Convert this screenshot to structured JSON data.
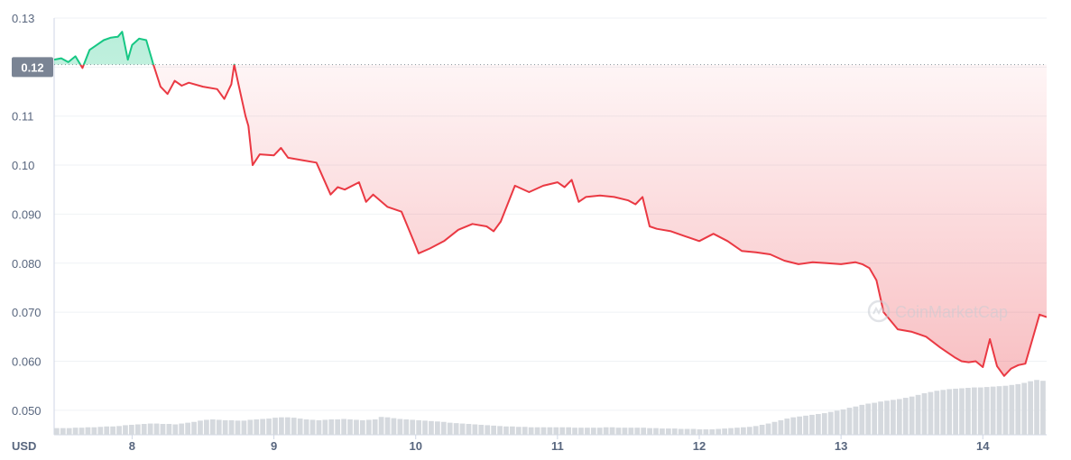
{
  "chart_data": {
    "type": "line",
    "xlabel": "",
    "ylabel": "",
    "currency_label": "USD",
    "current_price_label": "0.12",
    "watermark": "CoinMarketCap",
    "ylim": [
      0.045,
      0.13
    ],
    "xlim": [
      7.45,
      14.45
    ],
    "y_ticks": [
      {
        "value": 0.13,
        "label": "0.13"
      },
      {
        "value": 0.12,
        "label": "0.12"
      },
      {
        "value": 0.11,
        "label": "0.11"
      },
      {
        "value": 0.1,
        "label": "0.10"
      },
      {
        "value": 0.09,
        "label": "0.090"
      },
      {
        "value": 0.08,
        "label": "0.080"
      },
      {
        "value": 0.07,
        "label": "0.070"
      },
      {
        "value": 0.06,
        "label": "0.060"
      },
      {
        "value": 0.05,
        "label": "0.050"
      }
    ],
    "x_ticks": [
      {
        "value": 8,
        "label": "8"
      },
      {
        "value": 9,
        "label": "9"
      },
      {
        "value": 10,
        "label": "10"
      },
      {
        "value": 11,
        "label": "11"
      },
      {
        "value": 12,
        "label": "12"
      },
      {
        "value": 13,
        "label": "13"
      },
      {
        "value": 14,
        "label": "14"
      }
    ],
    "reference_price": 0.1205,
    "colors": {
      "above": "#16c784",
      "below": "#ea3943",
      "volume": "#d5d9de",
      "grid": "#eff2f5",
      "label_bg": "#7a8494"
    },
    "series": [
      {
        "x": [
          7.45,
          7.5,
          7.55,
          7.6,
          7.65,
          7.7,
          7.75,
          7.8,
          7.85,
          7.9,
          7.93,
          7.97,
          8.0,
          8.05,
          8.1,
          8.15,
          8.2,
          8.25,
          8.3,
          8.35,
          8.4,
          8.5,
          8.6,
          8.65,
          8.7,
          8.72,
          8.75,
          8.8,
          8.82,
          8.85,
          8.9,
          9.0,
          9.05,
          9.1,
          9.2,
          9.3,
          9.4,
          9.45,
          9.5,
          9.6,
          9.65,
          9.7,
          9.8,
          9.9,
          10.0,
          10.02,
          10.1,
          10.2,
          10.3,
          10.4,
          10.5,
          10.55,
          10.6,
          10.7,
          10.8,
          10.9,
          11.0,
          11.05,
          11.1,
          11.15,
          11.2,
          11.3,
          11.4,
          11.5,
          11.55,
          11.6,
          11.65,
          11.7,
          11.8,
          11.9,
          12.0,
          12.1,
          12.2,
          12.3,
          12.4,
          12.5,
          12.6,
          12.7,
          12.8,
          12.9,
          13.0,
          13.1,
          13.15,
          13.2,
          13.25,
          13.3,
          13.4,
          13.5,
          13.6,
          13.7,
          13.8,
          13.85,
          13.9,
          13.95,
          14.0,
          14.05,
          14.1,
          14.15,
          14.2,
          14.25,
          14.3,
          14.35,
          14.4,
          14.45
        ],
        "y": [
          0.1215,
          0.1218,
          0.121,
          0.1222,
          0.1198,
          0.1235,
          0.1245,
          0.1255,
          0.126,
          0.1262,
          0.1272,
          0.1215,
          0.1245,
          0.1258,
          0.1255,
          0.1205,
          0.116,
          0.1145,
          0.1172,
          0.1162,
          0.1168,
          0.116,
          0.1155,
          0.1135,
          0.1165,
          0.1205,
          0.1165,
          0.11,
          0.108,
          0.1,
          0.1022,
          0.102,
          0.1035,
          0.1015,
          0.101,
          0.1005,
          0.094,
          0.0955,
          0.095,
          0.0965,
          0.0925,
          0.094,
          0.0915,
          0.0905,
          0.0835,
          0.082,
          0.083,
          0.0845,
          0.0868,
          0.088,
          0.0875,
          0.0865,
          0.0885,
          0.0958,
          0.0945,
          0.0958,
          0.0965,
          0.0955,
          0.097,
          0.0925,
          0.0935,
          0.0938,
          0.0935,
          0.0928,
          0.092,
          0.0935,
          0.0875,
          0.087,
          0.0865,
          0.0855,
          0.0845,
          0.086,
          0.0845,
          0.0825,
          0.0822,
          0.0818,
          0.0805,
          0.0798,
          0.0802,
          0.08,
          0.0798,
          0.0802,
          0.0798,
          0.079,
          0.0765,
          0.07,
          0.0665,
          0.066,
          0.065,
          0.0628,
          0.0608,
          0.06,
          0.0598,
          0.06,
          0.0588,
          0.0645,
          0.059,
          0.057,
          0.0585,
          0.0592,
          0.0595,
          0.0645,
          0.0695,
          0.069
        ]
      }
    ],
    "volume": [
      8.0,
      8.0,
      8.0,
      8.5,
      8.5,
      9.0,
      9.0,
      9.5,
      10.0,
      10.0,
      10.5,
      11.5,
      12.0,
      12.5,
      13.0,
      13.5,
      13.5,
      13.0,
      13.0,
      12.5,
      13.5,
      14.5,
      15.5,
      17.0,
      18.0,
      18.5,
      18.0,
      17.5,
      17.5,
      17.0,
      17.0,
      18.0,
      18.5,
      19.0,
      19.5,
      20.5,
      21.0,
      21.0,
      20.5,
      19.5,
      18.5,
      18.0,
      17.5,
      18.0,
      18.5,
      18.5,
      19.0,
      18.5,
      18.0,
      17.5,
      18.0,
      18.5,
      21.5,
      21.0,
      20.0,
      19.0,
      18.5,
      18.0,
      17.5,
      17.0,
      16.5,
      16.0,
      15.5,
      14.5,
      14.0,
      13.5,
      13.0,
      12.5,
      12.0,
      11.5,
      11.0,
      10.5,
      10.0,
      10.0,
      9.5,
      9.5,
      9.0,
      9.0,
      9.0,
      9.0,
      9.0,
      9.0,
      9.0,
      8.5,
      8.5,
      8.5,
      8.5,
      8.5,
      9.0,
      9.0,
      8.5,
      8.5,
      8.5,
      8.5,
      8.5,
      8.0,
      8.0,
      7.5,
      7.5,
      7.5,
      7.0,
      7.0,
      7.0,
      6.5,
      6.5,
      6.5,
      7.0,
      7.5,
      8.0,
      8.5,
      9.0,
      9.5,
      10.5,
      12.0,
      13.5,
      15.5,
      17.5,
      19.5,
      21.0,
      22.0,
      23.0,
      24.0,
      25.0,
      26.0,
      27.5,
      29.0,
      30.5,
      32.5,
      34.0,
      36.0,
      37.5,
      38.5,
      40.0,
      41.0,
      42.0,
      43.0,
      44.5,
      46.0,
      48.0,
      50.0,
      51.5,
      53.0,
      54.0,
      55.0,
      55.5,
      56.0,
      56.5,
      57.0,
      57.0,
      57.5,
      58.0,
      58.5,
      59.0,
      60.0,
      61.0,
      62.5,
      64.5,
      66.0,
      65.0
    ]
  }
}
